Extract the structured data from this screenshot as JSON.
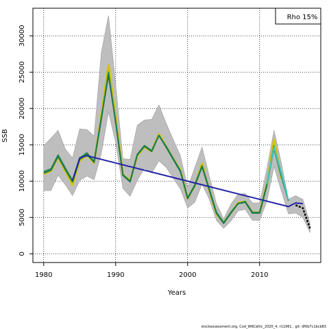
{
  "chart_data": {
    "type": "line",
    "title": "",
    "xlabel": "Years",
    "ylabel": "SSB",
    "xlim": [
      1978.5,
      2018.5
    ],
    "ylim": [
      -1200,
      33800
    ],
    "x_ticks": [
      1980,
      1990,
      2000,
      2010
    ],
    "y_ticks": [
      0,
      5000,
      10000,
      15000,
      20000,
      25000,
      30000
    ],
    "grid": true,
    "legend_label": "Rho 15%",
    "legend_position": "top-right",
    "footer": "stockassessment.org, Cod_WKCeltic_2020_4, r11961 , git: df0b7c1bcb83",
    "band": {
      "color": "#bebebe",
      "x": [
        1980,
        1981,
        1982,
        1983,
        1984,
        1985,
        1986,
        1987,
        1988,
        1989,
        1990,
        1991,
        1992,
        1993,
        1994,
        1995,
        1996,
        1997,
        1998,
        1999,
        2000,
        2001,
        2002,
        2003,
        2004,
        2005,
        2006,
        2007,
        2008,
        2009,
        2010,
        2011,
        2012,
        2013,
        2014,
        2015,
        2016,
        2017
      ],
      "upper": [
        14900,
        15900,
        17000,
        14400,
        13200,
        17200,
        17100,
        16200,
        27700,
        32800,
        23300,
        13100,
        13000,
        17700,
        18400,
        18500,
        20500,
        18000,
        15700,
        13500,
        9100,
        11900,
        14700,
        10700,
        6900,
        4800,
        6800,
        8200,
        8300,
        7000,
        7000,
        11700,
        17000,
        12600,
        7500,
        8000,
        7500,
        4200
      ],
      "lower": [
        8700,
        8700,
        10800,
        9500,
        8000,
        10100,
        10700,
        10200,
        13800,
        19500,
        15300,
        9000,
        7900,
        10100,
        11800,
        11100,
        12800,
        11900,
        10400,
        8900,
        6300,
        7100,
        9600,
        7500,
        4600,
        3500,
        4500,
        5900,
        6100,
        4600,
        4600,
        7200,
        12000,
        8700,
        5500,
        5600,
        5000,
        2900
      ]
    },
    "series": [
      {
        "color": "#d4c400",
        "x": [
          1980,
          1981,
          1982,
          1983,
          1984,
          1985,
          1986,
          1987,
          1988,
          1989,
          1990,
          1991,
          1992,
          1993,
          1994,
          1995,
          1996,
          1997,
          1998,
          1999,
          2000,
          2001,
          2002,
          2003,
          2004,
          2005,
          2006,
          2007,
          2008,
          2009,
          2010,
          2011,
          2012,
          2013
        ],
        "values": [
          11000,
          11400,
          13300,
          11400,
          9500,
          12800,
          13600,
          12500,
          19000,
          26000,
          18700,
          10900,
          10100,
          13500,
          14700,
          14100,
          16500,
          14800,
          13100,
          11500,
          7600,
          9400,
          12400,
          8700,
          5500,
          4300,
          5600,
          7000,
          7200,
          5700,
          5700,
          9500,
          15700,
          10400
        ]
      },
      {
        "color": "#2e8b57",
        "x": [
          1980,
          1981,
          1982,
          1983,
          1984,
          1985,
          1986,
          1987,
          1988,
          1989,
          1990,
          1991,
          1992,
          1993,
          1994,
          1995,
          1996,
          1997,
          1998,
          1999,
          2000,
          2001,
          2002,
          2003,
          2004,
          2005,
          2006,
          2007,
          2008,
          2009,
          2010,
          2011,
          2012,
          2013,
          2014
        ],
        "values": [
          11300,
          11700,
          13600,
          11800,
          10100,
          13200,
          13900,
          12700,
          18500,
          25000,
          18000,
          10900,
          10000,
          13700,
          14900,
          14200,
          16300,
          14800,
          13100,
          11400,
          7700,
          9500,
          12100,
          8900,
          5700,
          4300,
          5700,
          6900,
          7200,
          5700,
          5700,
          9500,
          14500,
          10700,
          7300
        ]
      },
      {
        "color": "#1c7a50",
        "x": [
          1980,
          1981,
          1982,
          1983,
          1984,
          1985,
          1986,
          1987,
          1988,
          1989,
          1990,
          1991,
          1992,
          1993,
          1994,
          1995,
          1996,
          1997,
          1998,
          1999,
          2000,
          2001,
          2002,
          2003,
          2004,
          2005,
          2006,
          2007,
          2008,
          2009,
          2010,
          2011,
          2012
        ],
        "values": [
          11100,
          11500,
          13400,
          11600,
          9900,
          13000,
          13700,
          12600,
          18700,
          24600,
          18200,
          10800,
          9900,
          13600,
          14800,
          14100,
          16300,
          14700,
          13000,
          11300,
          7600,
          9400,
          12000,
          8800,
          5600,
          4200,
          5600,
          6900,
          7100,
          5600,
          5600,
          9400,
          14900
        ]
      },
      {
        "color": "#3fc7c7",
        "x": [
          2011,
          2012,
          2013,
          2014
        ],
        "values": [
          9600,
          14700,
          11200,
          7400
        ]
      },
      {
        "color": "#2222aa",
        "x": [
          1984,
          1985,
          1986,
          2014,
          2015,
          2016
        ],
        "values": [
          10100,
          13200,
          13500,
          6500,
          7000,
          6900
        ]
      },
      {
        "color": "#000000",
        "x": [
          2015,
          2016,
          2017
        ],
        "values": [
          6700,
          6300,
          3500
        ],
        "dashed": true
      }
    ]
  }
}
